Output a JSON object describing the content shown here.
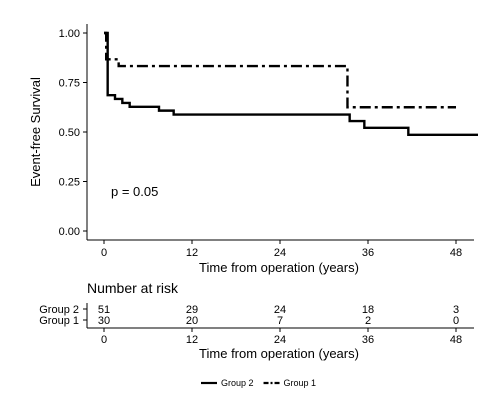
{
  "chart_data": {
    "type": "line",
    "subtype": "kaplan-meier-step",
    "title": "",
    "xlabel": "Time from operation (years)",
    "ylabel": "Event-free Survival",
    "xlim": [
      0,
      48
    ],
    "ylim": [
      0,
      1
    ],
    "x_ticks": [
      0,
      12,
      24,
      36,
      48
    ],
    "x_tick_labels": [
      "0",
      "12",
      "24",
      "36",
      "48"
    ],
    "y_ticks": [
      0,
      0.25,
      0.5,
      0.75,
      1.0
    ],
    "y_tick_labels": [
      "0.00",
      "0.25",
      "0.50",
      "0.75",
      "1.00"
    ],
    "grid": false,
    "legend_position": "bottom",
    "annotation": "p = 0.05",
    "series": [
      {
        "name": "Group 2",
        "line_style": "solid",
        "color": "#000000",
        "points": [
          [
            0,
            1.0
          ],
          [
            0.5,
            0.686
          ],
          [
            1.5,
            0.667
          ],
          [
            2.5,
            0.647
          ],
          [
            3.5,
            0.627
          ],
          [
            7.5,
            0.608
          ],
          [
            9.5,
            0.588
          ],
          [
            33.5,
            0.555
          ],
          [
            35.5,
            0.521
          ],
          [
            41.5,
            0.486
          ],
          [
            51,
            0.486
          ]
        ]
      },
      {
        "name": "Group 1",
        "line_style": "dashdot",
        "color": "#000000",
        "points": [
          [
            0,
            1.0
          ],
          [
            0.3,
            0.867
          ],
          [
            2.0,
            0.833
          ],
          [
            33.2,
            0.625
          ],
          [
            48,
            0.625
          ]
        ]
      }
    ],
    "risk_table": {
      "title": "Number at risk",
      "times": [
        0,
        12,
        24,
        36,
        48
      ],
      "time_labels": [
        "0",
        "12",
        "24",
        "36",
        "48"
      ],
      "xlabel": "Time from operation (years)",
      "rows": [
        {
          "name": "Group 2",
          "counts": [
            "51",
            "29",
            "24",
            "18",
            "3"
          ]
        },
        {
          "name": "Group 1",
          "counts": [
            "30",
            "20",
            "7",
            "2",
            "0"
          ]
        }
      ]
    },
    "legend": [
      {
        "name": "Group 2",
        "line_style": "solid"
      },
      {
        "name": "Group 1",
        "line_style": "dashdot"
      }
    ]
  }
}
